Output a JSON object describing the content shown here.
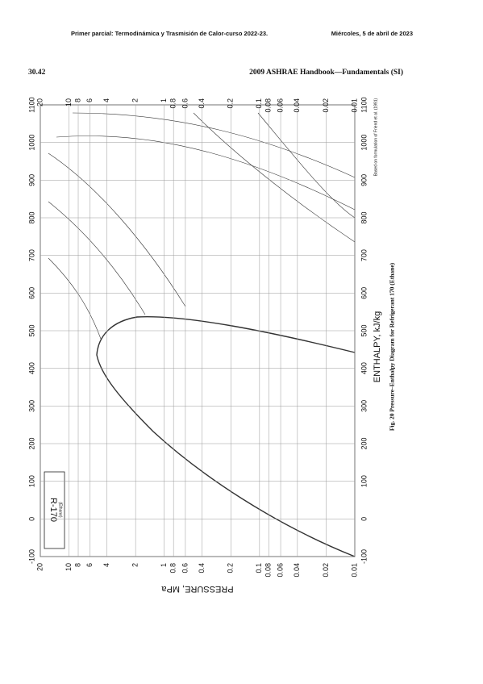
{
  "header": {
    "left": "Primer parcial: Termodinámica y Trasmisión de Calor-curso 2022-23.",
    "right": "Miércoles, 5 de abril de 2023"
  },
  "book_header": {
    "page": "30.42",
    "title": "2009 ASHRAE Handbook—Fundamentals (SI)"
  },
  "figure": {
    "caption": "Fig. 20  Pressure–Enthalpy Diagram for Refrigerant 170 (Ethane)",
    "enthalpy_label": "ENTHALPY, kJ/kg",
    "pressure_label": "PRESSURE, MPa",
    "legend_title": "R-170",
    "legend_subtitle": "(Ethane)",
    "source_note": "Based on formulation of Friend et al. (1991)",
    "enthalpy_ticks": [
      -100,
      0,
      100,
      200,
      300,
      400,
      500,
      600,
      700,
      800,
      900,
      1000,
      1100
    ],
    "pressure_ticks": [
      20,
      10,
      8,
      6,
      4,
      2,
      1,
      0.8,
      0.6,
      0.4,
      0.2,
      0.1,
      0.08,
      0.06,
      0.04,
      0.02,
      0.01
    ]
  }
}
